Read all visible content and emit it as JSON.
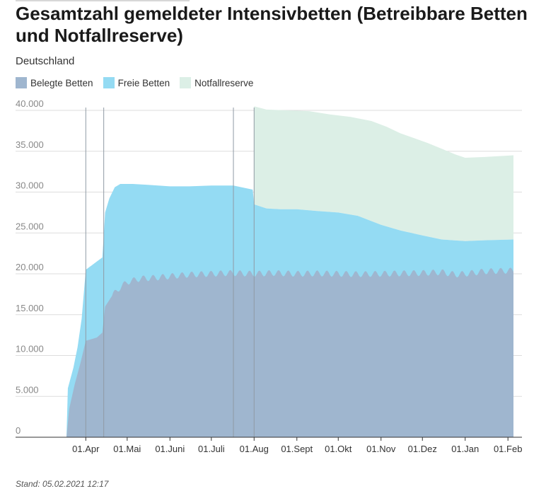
{
  "title": "Gesamtzahl gemeldeter Intensivbetten (Betreibbare Betten und Notfallreserve)",
  "subtitle": "Deutschland",
  "footer": "Stand: 05.02.2021 12:17",
  "colors": {
    "belegte": "#9fb6cf",
    "freie": "#94dbf3",
    "notfall": "#dcefe6",
    "grid": "#dddddd",
    "axis": "#333333",
    "vline": "#8f9aa4"
  },
  "chart_data": {
    "type": "area",
    "stacked": true,
    "x_unit": "date",
    "x_ticks": [
      {
        "label": "01.Apr",
        "date": "2020-04-01"
      },
      {
        "label": "01.Mai",
        "date": "2020-05-01"
      },
      {
        "label": "01.Juni",
        "date": "2020-06-01"
      },
      {
        "label": "01.Juli",
        "date": "2020-07-01"
      },
      {
        "label": "01.Aug",
        "date": "2020-08-01"
      },
      {
        "label": "01.Sept",
        "date": "2020-09-01"
      },
      {
        "label": "01.Okt",
        "date": "2020-10-01"
      },
      {
        "label": "01.Nov",
        "date": "2020-11-01"
      },
      {
        "label": "01.Dez",
        "date": "2020-12-01"
      },
      {
        "label": "01.Jan",
        "date": "2021-01-01"
      },
      {
        "label": "01.Feb",
        "date": "2021-02-01"
      }
    ],
    "y_ticks": [
      {
        "value": 0,
        "label": "0"
      },
      {
        "value": 5000,
        "label": "5.000"
      },
      {
        "value": 10000,
        "label": "10.000"
      },
      {
        "value": 15000,
        "label": "15.000"
      },
      {
        "value": 20000,
        "label": "20.000"
      },
      {
        "value": 25000,
        "label": "25.000"
      },
      {
        "value": 30000,
        "label": "30.000"
      },
      {
        "value": 35000,
        "label": "35.000"
      },
      {
        "value": 40000,
        "label": "40.000"
      }
    ],
    "ylim": [
      0,
      40000
    ],
    "xlim": [
      "2020-03-18",
      "2021-02-05"
    ],
    "grid": true,
    "legend": "top-left",
    "reference_lines": [
      "2020-04-01",
      "2020-04-14",
      "2020-07-17",
      "2020-08-01"
    ],
    "series": [
      {
        "name": "Belegte Betten",
        "key": "belegte",
        "points": [
          [
            "2020-03-18",
            0
          ],
          [
            "2020-03-20",
            3500
          ],
          [
            "2020-03-24",
            6500
          ],
          [
            "2020-03-28",
            9000
          ],
          [
            "2020-04-01",
            11800
          ],
          [
            "2020-04-05",
            12000
          ],
          [
            "2020-04-09",
            12200
          ],
          [
            "2020-04-13",
            12800
          ],
          [
            "2020-04-15",
            16000
          ],
          [
            "2020-04-20",
            17300
          ],
          [
            "2020-04-25",
            18200
          ],
          [
            "2020-05-01",
            19000
          ],
          [
            "2020-05-10",
            19400
          ],
          [
            "2020-05-20",
            19500
          ],
          [
            "2020-06-01",
            19700
          ],
          [
            "2020-06-15",
            19900
          ],
          [
            "2020-07-01",
            20000
          ],
          [
            "2020-07-15",
            20100
          ],
          [
            "2020-08-01",
            20000
          ],
          [
            "2020-08-15",
            20100
          ],
          [
            "2020-09-01",
            20000
          ],
          [
            "2020-09-15",
            20050
          ],
          [
            "2020-10-01",
            20000
          ],
          [
            "2020-10-15",
            19950
          ],
          [
            "2020-11-01",
            20000
          ],
          [
            "2020-11-15",
            20050
          ],
          [
            "2020-12-01",
            20100
          ],
          [
            "2020-12-15",
            20200
          ],
          [
            "2020-12-25",
            19900
          ],
          [
            "2021-01-01",
            20000
          ],
          [
            "2021-01-15",
            20300
          ],
          [
            "2021-02-05",
            20400
          ]
        ]
      },
      {
        "name": "Freie Betten",
        "key": "freie",
        "totals": [
          [
            "2020-03-18",
            0
          ],
          [
            "2020-03-19",
            6000
          ],
          [
            "2020-03-23",
            8500
          ],
          [
            "2020-03-26",
            11000
          ],
          [
            "2020-03-29",
            14500
          ],
          [
            "2020-04-01",
            20500
          ],
          [
            "2020-04-05",
            21000
          ],
          [
            "2020-04-09",
            21500
          ],
          [
            "2020-04-13",
            22000
          ],
          [
            "2020-04-15",
            27500
          ],
          [
            "2020-04-18",
            29200
          ],
          [
            "2020-04-22",
            30600
          ],
          [
            "2020-04-26",
            31000
          ],
          [
            "2020-05-05",
            31000
          ],
          [
            "2020-05-15",
            30900
          ],
          [
            "2020-06-01",
            30700
          ],
          [
            "2020-06-15",
            30700
          ],
          [
            "2020-07-01",
            30800
          ],
          [
            "2020-07-17",
            30800
          ],
          [
            "2020-07-31",
            30300
          ],
          [
            "2020-08-01",
            28500
          ],
          [
            "2020-08-10",
            28000
          ],
          [
            "2020-08-20",
            27900
          ],
          [
            "2020-09-01",
            27900
          ],
          [
            "2020-09-15",
            27700
          ],
          [
            "2020-10-01",
            27500
          ],
          [
            "2020-10-15",
            27100
          ],
          [
            "2020-11-01",
            26000
          ],
          [
            "2020-11-15",
            25300
          ],
          [
            "2020-12-01",
            24700
          ],
          [
            "2020-12-15",
            24200
          ],
          [
            "2021-01-01",
            24000
          ],
          [
            "2021-01-15",
            24100
          ],
          [
            "2021-02-05",
            24200
          ]
        ]
      },
      {
        "name": "Notfallreserve",
        "key": "notfall",
        "totals": [
          [
            "2020-08-01",
            40500
          ],
          [
            "2020-08-10",
            40100
          ],
          [
            "2020-08-25",
            40000
          ],
          [
            "2020-09-10",
            39900
          ],
          [
            "2020-09-25",
            39500
          ],
          [
            "2020-10-10",
            39200
          ],
          [
            "2020-10-25",
            38700
          ],
          [
            "2020-11-05",
            38000
          ],
          [
            "2020-11-15",
            37200
          ],
          [
            "2020-11-25",
            36600
          ],
          [
            "2020-12-05",
            36000
          ],
          [
            "2020-12-15",
            35300
          ],
          [
            "2020-12-25",
            34600
          ],
          [
            "2021-01-01",
            34200
          ],
          [
            "2021-01-15",
            34300
          ],
          [
            "2021-02-05",
            34500
          ]
        ]
      }
    ]
  }
}
